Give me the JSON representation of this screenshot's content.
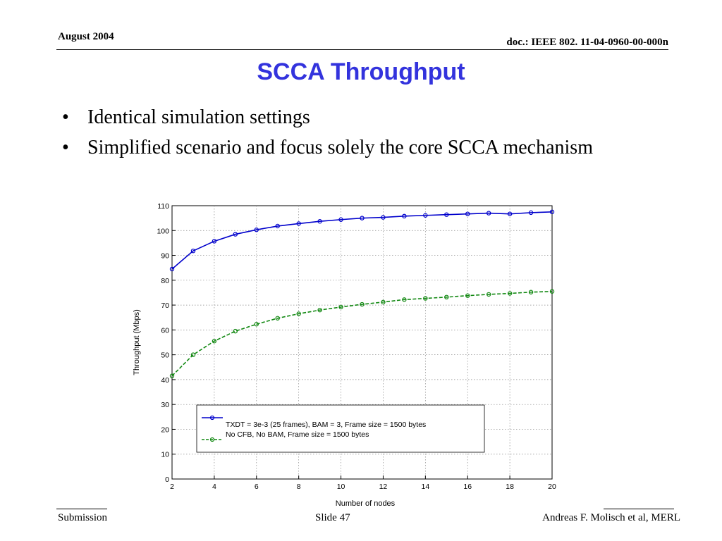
{
  "header": {
    "date": "August 2004",
    "doc_id": "doc.: IEEE 802. 11-04-0960-00-000n"
  },
  "slide": {
    "title": "SCCA Throughput",
    "bullets": [
      "Identical simulation settings",
      "Simplified scenario and focus solely the core SCCA mechanism"
    ]
  },
  "footer": {
    "left": "Submission",
    "center": "Slide 47",
    "right": "Andreas F. Molisch et al, MERL"
  },
  "chart_data": {
    "type": "line",
    "xlabel": "Number of nodes",
    "ylabel": "Throughput (Mbps)",
    "xlim": [
      2,
      20
    ],
    "ylim": [
      0,
      110
    ],
    "xticks": [
      2,
      4,
      6,
      8,
      10,
      12,
      14,
      16,
      18,
      20
    ],
    "yticks": [
      0,
      10,
      20,
      30,
      40,
      50,
      60,
      70,
      80,
      90,
      100,
      110
    ],
    "grid": true,
    "legend_position": "lower-center",
    "x": [
      2,
      3,
      4,
      5,
      6,
      7,
      8,
      9,
      10,
      11,
      12,
      13,
      14,
      15,
      16,
      17,
      18,
      19,
      20
    ],
    "series": [
      {
        "name": "TXDT = 3e-3 (25 frames), BAM = 3, Frame size = 1500 bytes",
        "color": "#0000cc",
        "line_style": "solid",
        "values": [
          84.5,
          91.8,
          95.7,
          98.5,
          100.3,
          101.8,
          102.8,
          103.7,
          104.4,
          105.0,
          105.3,
          105.8,
          106.1,
          106.4,
          106.7,
          107.0,
          106.7,
          107.2,
          107.5
        ]
      },
      {
        "name": "No CFB, No BAM, Frame size = 1500 bytes",
        "color": "#118811",
        "line_style": "dashed",
        "values": [
          41.5,
          50.0,
          55.5,
          59.5,
          62.3,
          64.7,
          66.5,
          68.0,
          69.2,
          70.3,
          71.2,
          72.2,
          72.7,
          73.2,
          73.8,
          74.3,
          74.7,
          75.2,
          75.5
        ]
      }
    ]
  }
}
